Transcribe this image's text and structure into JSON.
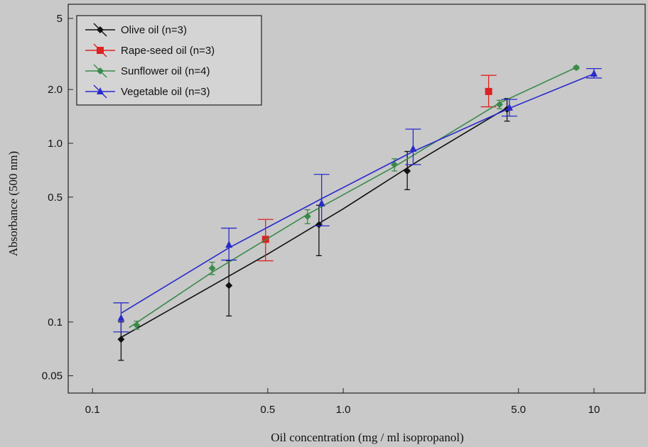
{
  "chart_data": {
    "type": "scatter",
    "xlabel": "Oil concentration (mg / ml isopropanol)",
    "ylabel": "Absorbance (500 nm)",
    "xscale": "log",
    "yscale": "log",
    "xlim": [
      0.08,
      16
    ],
    "ylim": [
      0.04,
      6
    ],
    "xticks": [
      {
        "value": 0.1,
        "label": "0.1"
      },
      {
        "value": 0.5,
        "label": "0.5"
      },
      {
        "value": 1.0,
        "label": "1.0"
      },
      {
        "value": 5.0,
        "label": "5.0"
      },
      {
        "value": 10,
        "label": "10"
      }
    ],
    "yticks": [
      {
        "value": 0.05,
        "label": "0.05"
      },
      {
        "value": 0.1,
        "label": "0.1"
      },
      {
        "value": 0.5,
        "label": "0.5"
      },
      {
        "value": 1.0,
        "label": "1.0"
      },
      {
        "value": 2.0,
        "label": "2.0"
      },
      {
        "value": 5,
        "label": "5"
      }
    ],
    "legend_position": "top-left",
    "background_color": "#c9c9c9",
    "series": [
      {
        "name": "Olive oil (n=3)",
        "color": "#111111",
        "marker": "diamond",
        "x": [
          0.13,
          0.35,
          0.8,
          1.8,
          4.5
        ],
        "y": [
          0.08,
          0.16,
          0.35,
          0.7,
          1.55
        ],
        "err_low": [
          0.061,
          0.108,
          0.235,
          0.55,
          1.33
        ],
        "err_high": [
          0.1,
          0.22,
          0.45,
          0.9,
          1.78
        ],
        "fit": [
          [
            0.13,
            0.082
          ],
          [
            0.5,
            0.24
          ],
          [
            1.0,
            0.43
          ],
          [
            2.0,
            0.8
          ],
          [
            4.5,
            1.58
          ]
        ]
      },
      {
        "name": "Rape-seed oil (n=3)",
        "color": "#dd2222",
        "marker": "square",
        "x": [
          0.49,
          3.8
        ],
        "y": [
          0.29,
          1.95
        ],
        "err_low": [
          0.22,
          1.6
        ],
        "err_high": [
          0.375,
          2.4
        ],
        "fit": []
      },
      {
        "name": "Sunflower oil (n=4)",
        "color": "#3a8a4a",
        "marker": "diamond",
        "x": [
          0.15,
          0.3,
          0.72,
          1.6,
          4.2,
          8.5
        ],
        "y": [
          0.096,
          0.2,
          0.39,
          0.76,
          1.65,
          2.65
        ],
        "err_low": [
          0.091,
          0.184,
          0.355,
          0.7,
          1.56,
          2.6
        ],
        "err_high": [
          0.101,
          0.216,
          0.425,
          0.82,
          1.74,
          2.7
        ],
        "fit": [
          [
            0.14,
            0.093
          ],
          [
            0.3,
            0.19
          ],
          [
            0.72,
            0.4
          ],
          [
            1.6,
            0.74
          ],
          [
            4.2,
            1.68
          ],
          [
            8.5,
            2.66
          ]
        ]
      },
      {
        "name": "Vegetable oil (n=3)",
        "color": "#2a2acc",
        "marker": "triangle",
        "x": [
          0.13,
          0.35,
          0.82,
          1.9,
          4.6,
          10
        ],
        "y": [
          0.105,
          0.27,
          0.46,
          0.93,
          1.58,
          2.45
        ],
        "err_low": [
          0.088,
          0.222,
          0.345,
          0.76,
          1.42,
          2.32
        ],
        "err_high": [
          0.128,
          0.335,
          0.67,
          1.2,
          1.76,
          2.62
        ],
        "fit": [
          [
            0.13,
            0.112
          ],
          [
            0.35,
            0.26
          ],
          [
            0.82,
            0.49
          ],
          [
            1.9,
            0.9
          ],
          [
            4.6,
            1.57
          ],
          [
            10,
            2.45
          ]
        ]
      }
    ]
  }
}
